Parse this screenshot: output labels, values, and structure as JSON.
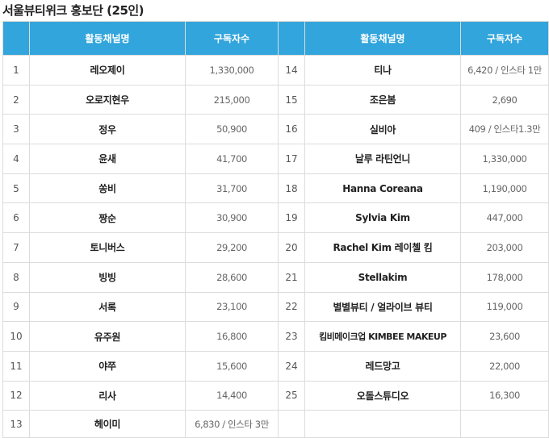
{
  "page": {
    "title": "서울뷰티위크 홍보단 (25인)"
  },
  "table": {
    "headers": {
      "channel": "활동채널명",
      "subscribers": "구독자수"
    },
    "left": [
      {
        "no": "1",
        "name": "레오제이",
        "subs": "1,330,000"
      },
      {
        "no": "2",
        "name": "오로지현우",
        "subs": "215,000"
      },
      {
        "no": "3",
        "name": "정우",
        "subs": "50,900"
      },
      {
        "no": "4",
        "name": "윤새",
        "subs": "41,700"
      },
      {
        "no": "5",
        "name": "쏭비",
        "subs": "31,700"
      },
      {
        "no": "6",
        "name": "짱순",
        "subs": "30,900"
      },
      {
        "no": "7",
        "name": "토니버스",
        "subs": "29,200"
      },
      {
        "no": "8",
        "name": "빙빙",
        "subs": "28,600"
      },
      {
        "no": "9",
        "name": "서록",
        "subs": "23,100"
      },
      {
        "no": "10",
        "name": "유주원",
        "subs": "16,800"
      },
      {
        "no": "11",
        "name": "야쭈",
        "subs": "15,600"
      },
      {
        "no": "12",
        "name": "리사",
        "subs": "14,400"
      },
      {
        "no": "13",
        "name": "헤이미",
        "subs": "6,830 / 인스타 3만"
      }
    ],
    "right": [
      {
        "no": "14",
        "name": "티나",
        "subs": "6,420 / 인스타 1만"
      },
      {
        "no": "15",
        "name": "조은봄",
        "subs": "2,690"
      },
      {
        "no": "16",
        "name": "실비아",
        "subs": "409 / 인스타1.3만"
      },
      {
        "no": "17",
        "name": "날루 라틴언니",
        "subs": "1,330,000"
      },
      {
        "no": "18",
        "name": "Hanna Coreana",
        "subs": "1,190,000"
      },
      {
        "no": "19",
        "name": "Sylvia Kim",
        "subs": "447,000"
      },
      {
        "no": "20",
        "name": "Rachel Kim 레이첼 킴",
        "subs": "203,000"
      },
      {
        "no": "21",
        "name": "Stellakim",
        "subs": "178,000"
      },
      {
        "no": "22",
        "name": "별별뷰티 / 얼라이브 뷰티",
        "subs": "119,000"
      },
      {
        "no": "23",
        "name": "킴비메이크업 KIMBEE MAKEUP",
        "subs": "23,600"
      },
      {
        "no": "24",
        "name": "레드망고",
        "subs": "22,000"
      },
      {
        "no": "25",
        "name": "오돌스튜디오",
        "subs": "16,300"
      }
    ]
  },
  "colors": {
    "header_bg": "#31a5dc",
    "header_text": "#ffffff",
    "border": "#dcdcdc"
  }
}
